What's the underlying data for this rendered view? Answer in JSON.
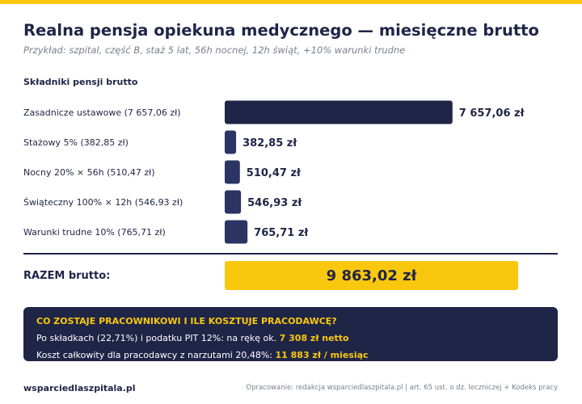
{
  "header": {
    "title": "Realna pensja opiekuna medycznego — miesięczne brutto",
    "subtitle": "Przykład: szpital, część B, staż 5 lat, 56h nocnej, 12h świąt, +10% warunki trudne"
  },
  "section_title": "Składniki pensji brutto",
  "colors": {
    "accent": "#f9c80e",
    "navy": "#1f2547"
  },
  "chart_data": {
    "type": "bar",
    "orientation": "horizontal",
    "categories": [
      "Zasadnicze ustawowe (7 657,06 zł)",
      "Stażowy 5% (382,85 zł)",
      "Nocny 20% × 56h (510,47 zł)",
      "Świąteczny 100% × 12h (546,93 zł)",
      "Warunki trudne 10% (765,71 zł)"
    ],
    "values": [
      7657.06,
      382.85,
      510.47,
      546.93,
      765.71
    ],
    "value_labels": [
      "7 657,06 zł",
      "382,85 zł",
      "510,47 zł",
      "546,93 zł",
      "765,71 zł"
    ],
    "xlim": [
      0,
      10500
    ]
  },
  "total": {
    "label": "RAZEM brutto:",
    "value": 9863.02,
    "value_label": "9 863,02 zł"
  },
  "info": {
    "heading": "CO ZOSTAJE PRACOWNIKOWI I ILE KOSZTUJE PRACODAWCĘ?",
    "line1_text": "Po składkach (22,71%) i podatku PIT 12%: na rękę ok. ",
    "line1_highlight": "7 308 zł netto",
    "line2_text": "Koszt całkowity dla pracodawcy z narzutami 20,48%: ",
    "line2_highlight": "11 883 zł / miesiąc"
  },
  "footer": {
    "brand": "wsparciedlaszpitala.pl",
    "source": "Opracowanie: redakcja wsparciedlaszpitala.pl | art. 65 ust. o dz. leczniczej + Kodeks pracy"
  }
}
